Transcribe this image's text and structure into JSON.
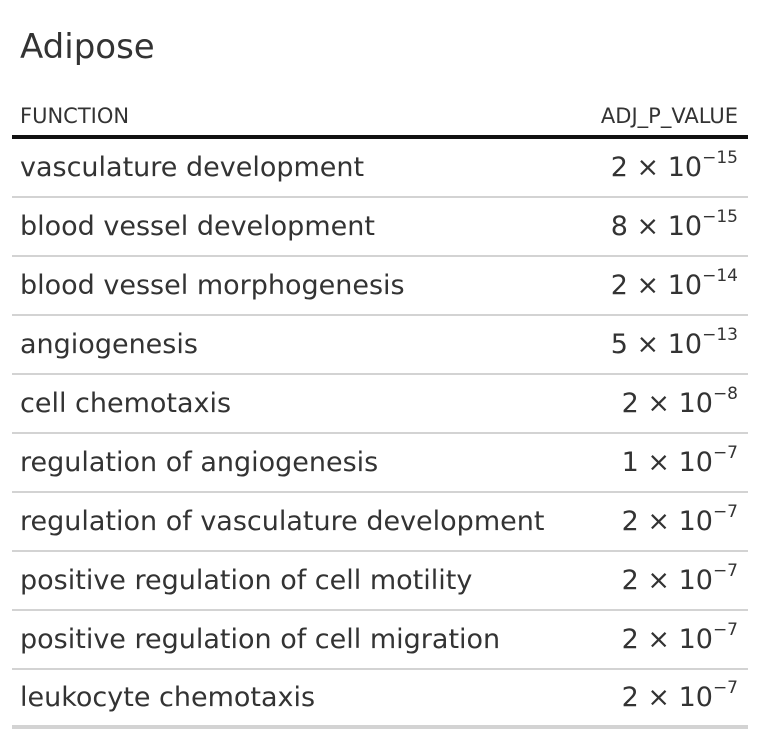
{
  "table": {
    "title": "Adipose",
    "columns": {
      "function": "FUNCTION",
      "adj_p_value": "ADJ_P_VALUE"
    },
    "rows": [
      {
        "function": "vasculature development",
        "mantissa": "2 × 10",
        "exponent": "−15"
      },
      {
        "function": "blood vessel development",
        "mantissa": "8 × 10",
        "exponent": "−15"
      },
      {
        "function": "blood vessel morphogenesis",
        "mantissa": "2 × 10",
        "exponent": "−14"
      },
      {
        "function": "angiogenesis",
        "mantissa": "5 × 10",
        "exponent": "−13"
      },
      {
        "function": "cell chemotaxis",
        "mantissa": "2 × 10",
        "exponent": "−8"
      },
      {
        "function": "regulation of angiogenesis",
        "mantissa": "1 × 10",
        "exponent": "−7"
      },
      {
        "function": "regulation of vasculature development",
        "mantissa": "2 × 10",
        "exponent": "−7"
      },
      {
        "function": "positive regulation of cell motility",
        "mantissa": "2 × 10",
        "exponent": "−7"
      },
      {
        "function": "positive regulation of cell migration",
        "mantissa": "2 × 10",
        "exponent": "−7"
      },
      {
        "function": "leukocyte chemotaxis",
        "mantissa": "2 × 10",
        "exponent": "−7"
      }
    ]
  }
}
